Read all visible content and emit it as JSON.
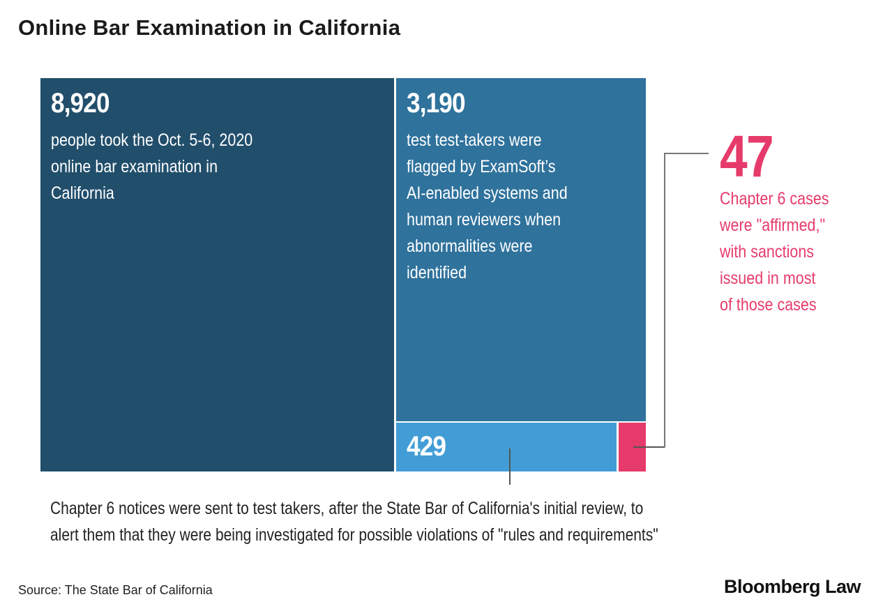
{
  "chart_data": {
    "type": "treemap",
    "title": "Online Bar Examination in California",
    "items": [
      {
        "value": 8920,
        "label": "8,920",
        "text": [
          "people took the Oct. 5-6, 2020",
          "online bar examination in",
          "California"
        ],
        "color": "#214e6b"
      },
      {
        "value": 3190,
        "label": "3,190",
        "text": [
          "test test-takers were",
          "flagged by ExamSoft’s",
          "AI-enabled systems and",
          "human reviewers when",
          "abnormalities were",
          "identified"
        ],
        "color": "#2f729c"
      },
      {
        "value": 429,
        "label": "429",
        "text": [
          "Chapter 6 notices were sent to test takers, after the State Bar of California's initial review, to",
          "alert them that they were being investigated for possible violations of \"rules and requirements\""
        ],
        "color": "#429dd6"
      },
      {
        "value": 47,
        "label": "47",
        "text": [
          "Chapter 6 cases",
          "were \"affirmed,\"",
          "with sanctions",
          "issued in most",
          "of those cases"
        ],
        "color": "#e63b6a"
      }
    ],
    "source": "Source: The State Bar of California",
    "brand": "Bloomberg Law"
  }
}
